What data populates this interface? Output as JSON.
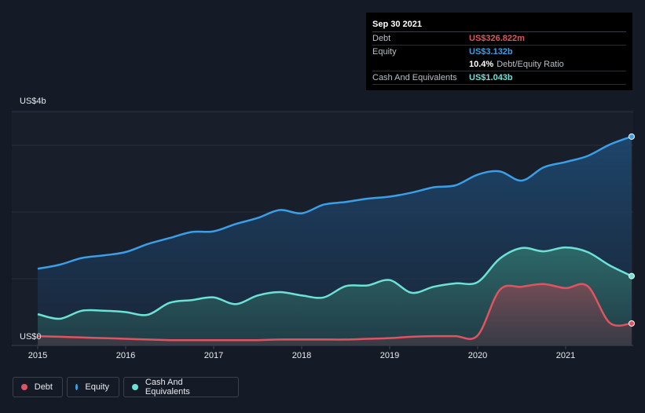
{
  "tooltip": {
    "date": "Sep 30 2021",
    "debt_label": "Debt",
    "debt_value": "US$326.822m",
    "equity_label": "Equity",
    "equity_value": "US$3.132b",
    "ratio_value": "10.4%",
    "ratio_label": "Debt/Equity Ratio",
    "cash_label": "Cash And Equivalents",
    "cash_value": "US$1.043b"
  },
  "legend": {
    "debt": "Debt",
    "equity": "Equity",
    "cash": "Cash And Equivalents"
  },
  "colors": {
    "debt": "#e0545f",
    "equity": "#3a9fe6",
    "cash": "#6ce2d6",
    "background": "#151b26"
  },
  "chart_data": {
    "type": "area",
    "title": "",
    "ylabel_top": "US$4b",
    "ylabel_bottom": "US$0",
    "ylim": [
      0,
      4
    ],
    "xlim": [
      2015.0,
      2021.75
    ],
    "x_ticks": [
      "2015",
      "2016",
      "2017",
      "2018",
      "2019",
      "2020",
      "2021"
    ],
    "gridlines": [
      1,
      2,
      3,
      3.5
    ],
    "series": [
      {
        "name": "Equity",
        "unit": "US$b",
        "x": [
          2015.0,
          2015.25,
          2015.5,
          2015.75,
          2016.0,
          2016.25,
          2016.5,
          2016.75,
          2017.0,
          2017.25,
          2017.5,
          2017.75,
          2018.0,
          2018.25,
          2018.5,
          2018.75,
          2019.0,
          2019.25,
          2019.5,
          2019.75,
          2020.0,
          2020.25,
          2020.5,
          2020.75,
          2021.0,
          2021.25,
          2021.5,
          2021.75
        ],
        "values": [
          1.15,
          1.21,
          1.31,
          1.35,
          1.4,
          1.52,
          1.61,
          1.7,
          1.71,
          1.82,
          1.91,
          2.03,
          1.98,
          2.11,
          2.15,
          2.2,
          2.23,
          2.29,
          2.37,
          2.4,
          2.56,
          2.61,
          2.47,
          2.67,
          2.75,
          2.84,
          3.01,
          3.13
        ]
      },
      {
        "name": "Cash And Equivalents",
        "unit": "US$b",
        "x": [
          2015.0,
          2015.25,
          2015.5,
          2015.75,
          2016.0,
          2016.25,
          2016.5,
          2016.75,
          2017.0,
          2017.25,
          2017.5,
          2017.75,
          2018.0,
          2018.25,
          2018.5,
          2018.75,
          2019.0,
          2019.25,
          2019.5,
          2019.75,
          2020.0,
          2020.25,
          2020.5,
          2020.75,
          2021.0,
          2021.25,
          2021.5,
          2021.75
        ],
        "values": [
          0.47,
          0.4,
          0.52,
          0.52,
          0.5,
          0.46,
          0.64,
          0.68,
          0.72,
          0.62,
          0.75,
          0.8,
          0.75,
          0.72,
          0.89,
          0.9,
          0.98,
          0.79,
          0.88,
          0.93,
          0.95,
          1.3,
          1.46,
          1.41,
          1.47,
          1.4,
          1.2,
          1.04
        ]
      },
      {
        "name": "Debt",
        "unit": "US$b",
        "x": [
          2015.0,
          2015.25,
          2015.5,
          2015.75,
          2016.0,
          2016.25,
          2016.5,
          2016.75,
          2017.0,
          2017.25,
          2017.5,
          2017.75,
          2018.0,
          2018.25,
          2018.5,
          2018.75,
          2019.0,
          2019.25,
          2019.5,
          2019.75,
          2020.0,
          2020.25,
          2020.5,
          2020.75,
          2021.0,
          2021.25,
          2021.5,
          2021.75
        ],
        "values": [
          0.14,
          0.13,
          0.12,
          0.11,
          0.1,
          0.09,
          0.08,
          0.08,
          0.08,
          0.08,
          0.08,
          0.09,
          0.09,
          0.09,
          0.09,
          0.1,
          0.11,
          0.13,
          0.14,
          0.14,
          0.15,
          0.83,
          0.88,
          0.92,
          0.86,
          0.89,
          0.34,
          0.33
        ]
      }
    ]
  }
}
